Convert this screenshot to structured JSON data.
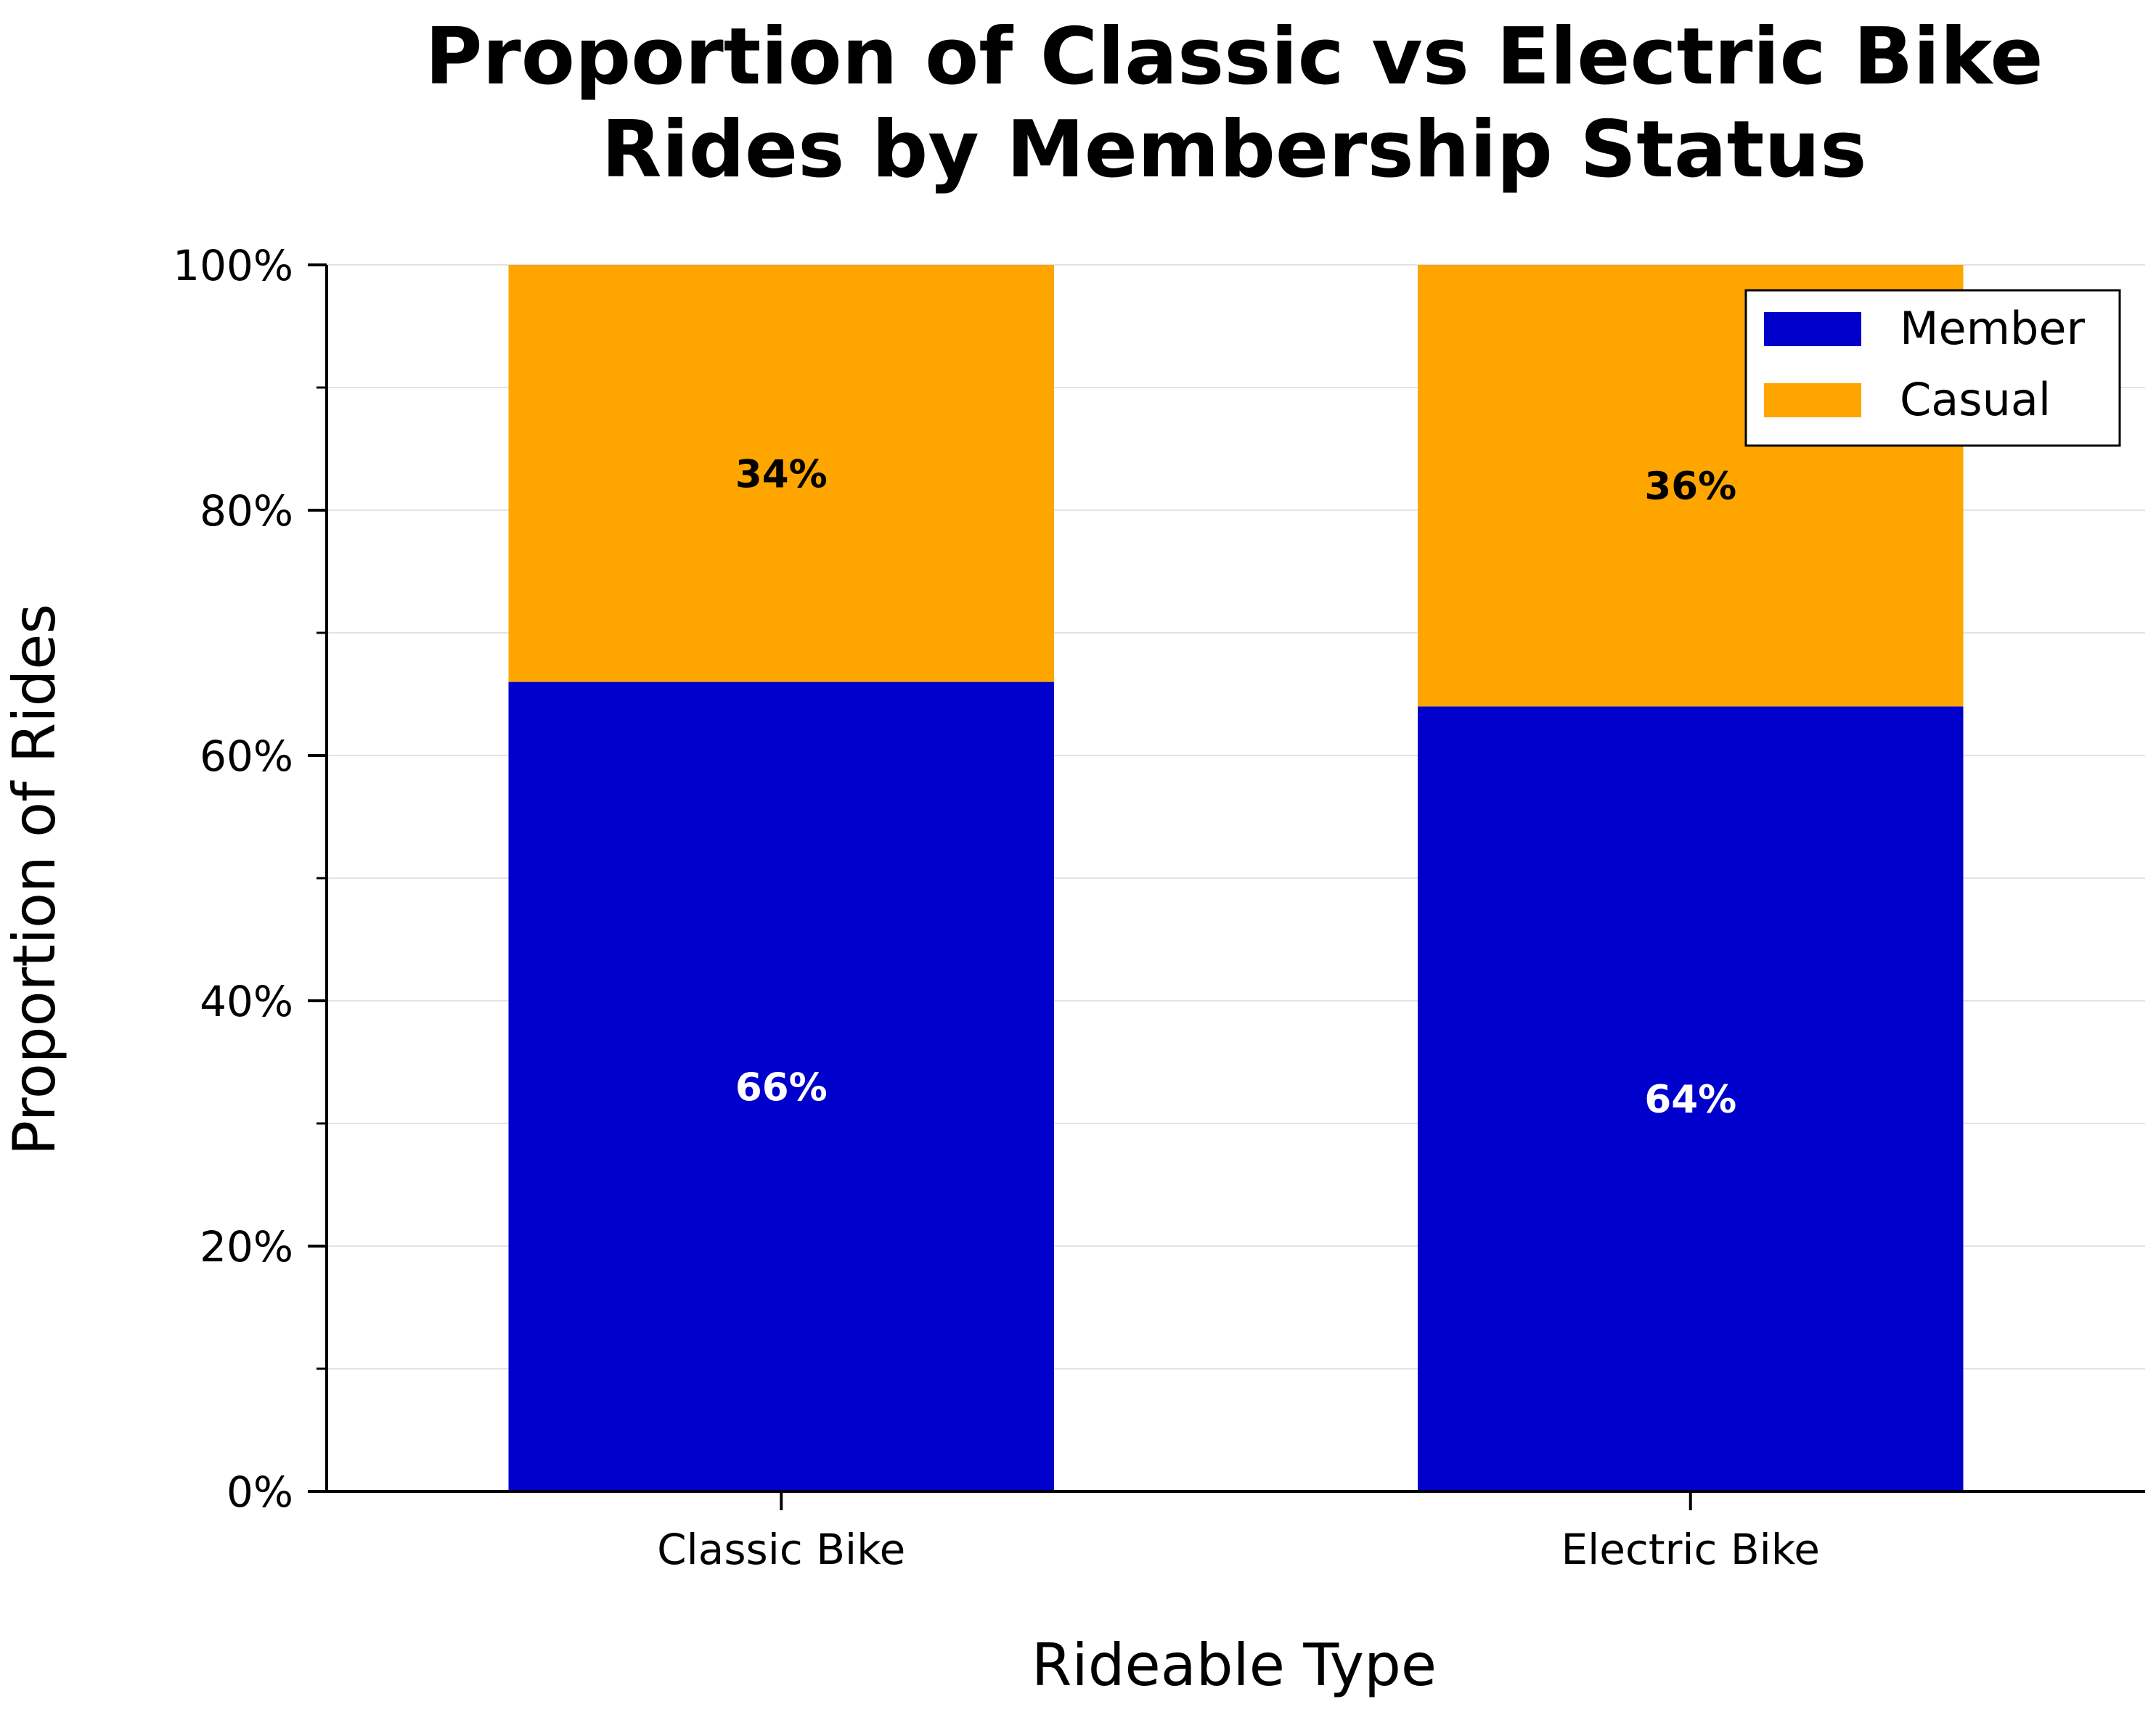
{
  "chart_data": {
    "type": "bar",
    "stacked": true,
    "title": [
      "Proportion of Classic vs Electric Bike",
      "Rides by Membership Status"
    ],
    "xlabel": "Rideable Type",
    "ylabel": "Proportion of Rides",
    "categories": [
      "Classic Bike",
      "Electric Bike"
    ],
    "series": [
      {
        "name": "Member",
        "color": "#0000cc",
        "label_color": "#ffffff",
        "values": [
          0.66,
          0.64
        ],
        "labels": [
          "66%",
          "64%"
        ]
      },
      {
        "name": "Casual",
        "color": "#ffa500",
        "label_color": "#000000",
        "values": [
          0.34,
          0.36
        ],
        "labels": [
          "34%",
          "36%"
        ]
      }
    ],
    "ylim": [
      0,
      1
    ],
    "yticks": [
      0,
      0.2,
      0.4,
      0.6,
      0.8,
      1.0
    ],
    "ytick_labels": [
      "0%",
      "20%",
      "40%",
      "60%",
      "80%",
      "100%"
    ],
    "minor_yticks": [
      0.1,
      0.3,
      0.5,
      0.7,
      0.9
    ],
    "grid": true,
    "legend_position": "top-right"
  }
}
